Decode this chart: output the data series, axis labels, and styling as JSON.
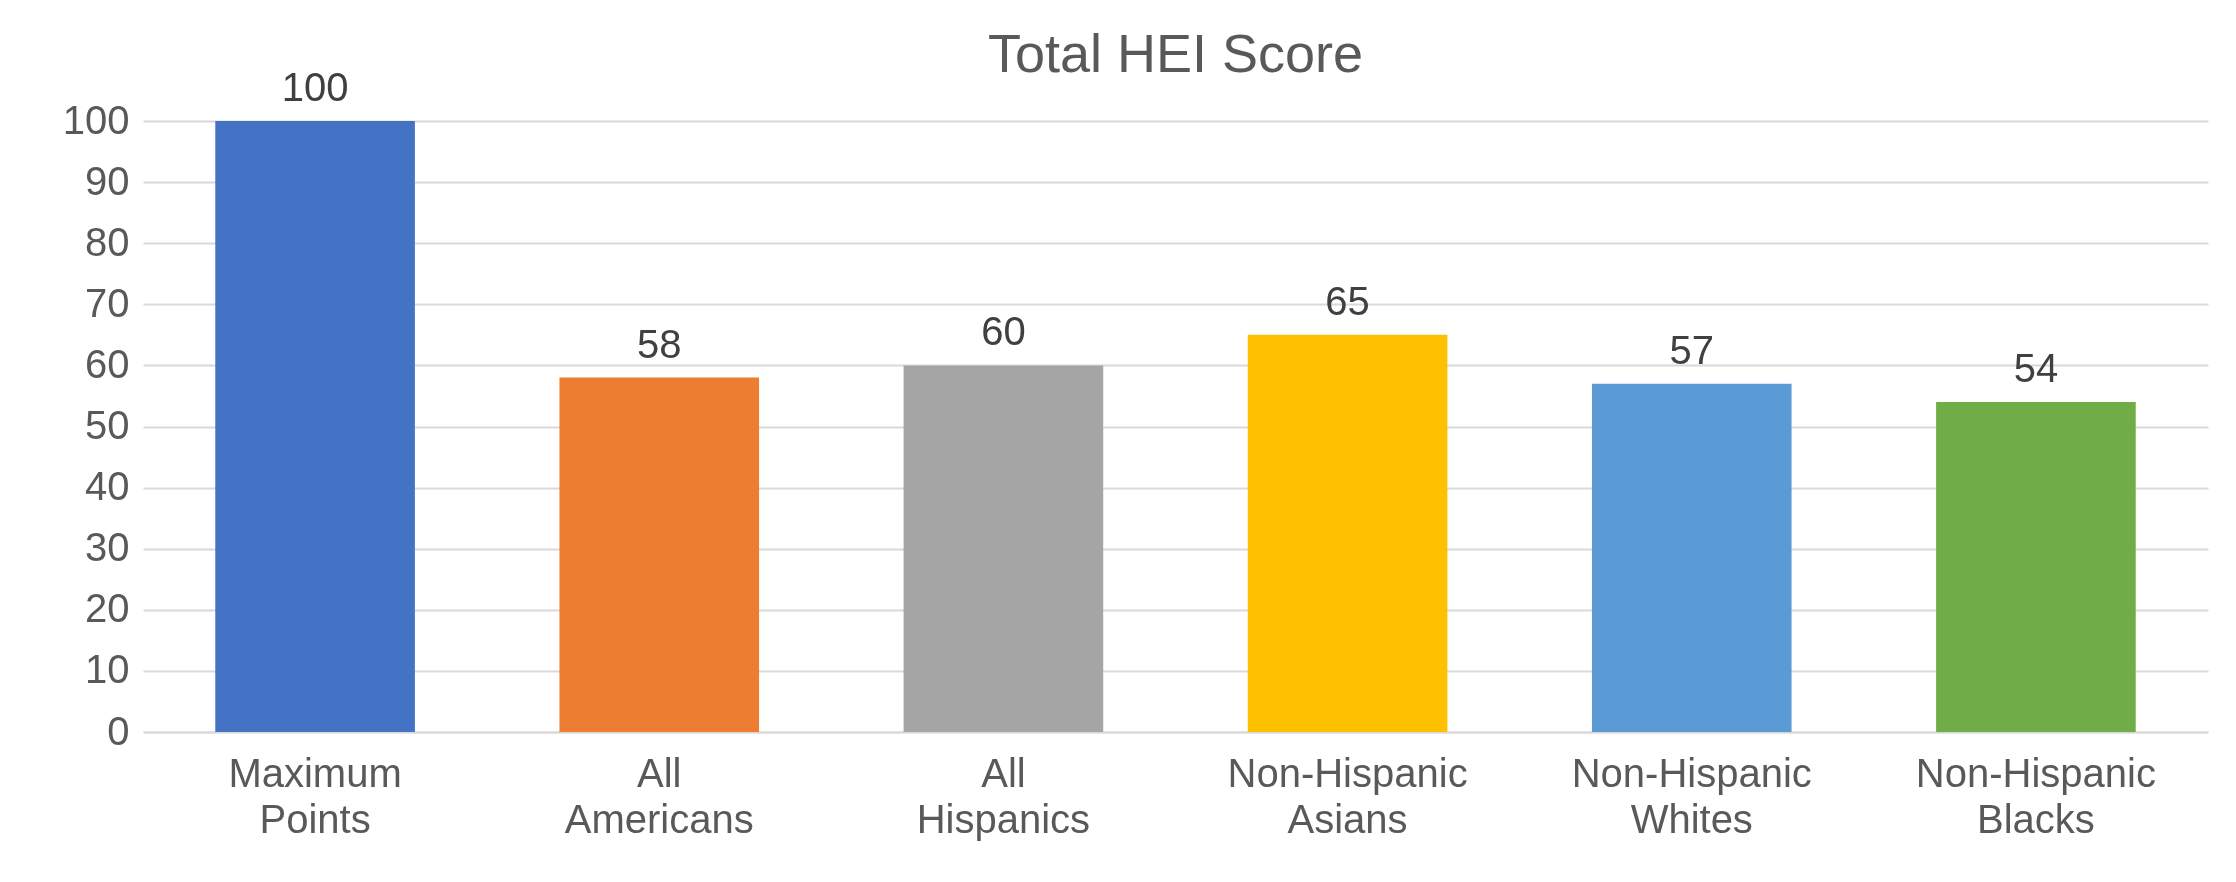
{
  "chart_data": {
    "type": "bar",
    "title": "Total HEI Score",
    "categories": [
      "Maximum Points",
      "All Americans",
      "All Hispanics",
      "Non-Hispanic Asians",
      "Non-Hispanic Whites",
      "Non-Hispanic Blacks"
    ],
    "values": [
      100,
      58,
      60,
      65,
      57,
      54
    ],
    "colors": [
      "#4472c4",
      "#ed7d31",
      "#a5a5a5",
      "#ffc000",
      "#5b9bd5",
      "#70ad47"
    ],
    "ylim": [
      0,
      100
    ],
    "yticks": [
      0,
      10,
      20,
      30,
      40,
      50,
      60,
      70,
      80,
      90,
      100
    ],
    "grid": "y",
    "data_labels": true
  }
}
